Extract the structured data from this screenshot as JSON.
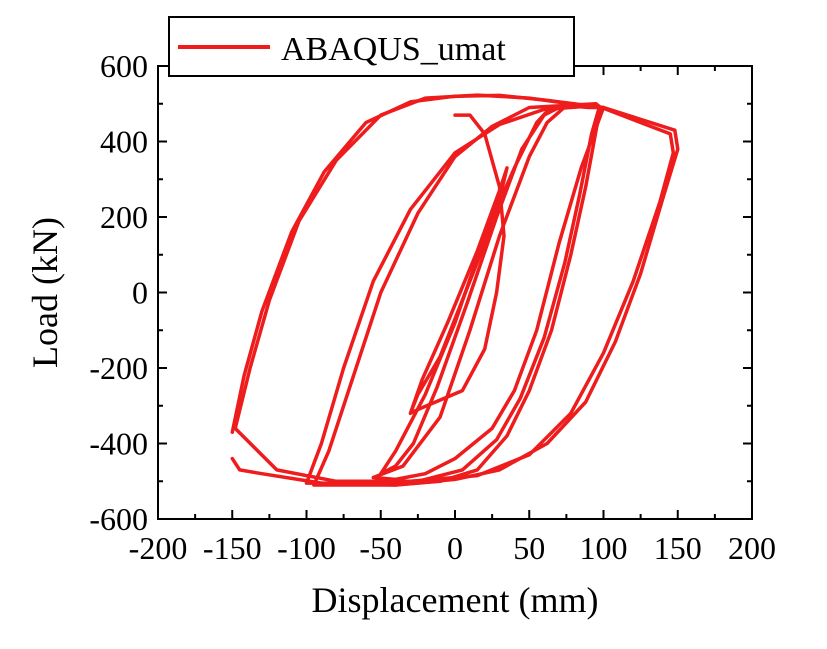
{
  "chart_data": {
    "type": "line",
    "xlabel": "Displacement (mm)",
    "ylabel": "Load (kN)",
    "xlim": [
      -200,
      200
    ],
    "ylim": [
      -600,
      600
    ],
    "xticks": [
      -200,
      -150,
      -100,
      -50,
      0,
      50,
      100,
      150,
      200
    ],
    "yticks": [
      -600,
      -400,
      -200,
      0,
      200,
      400,
      600
    ],
    "grid": false,
    "legend_position": "top-left",
    "series_color": "#ee1c1c",
    "series": [
      {
        "name": "ABAQUS_umat",
        "loops": [
          [
            [
              0,
              470
            ],
            [
              10,
              470
            ],
            [
              20,
              420
            ],
            [
              30,
              280
            ],
            [
              33,
              150
            ],
            [
              28,
              0
            ],
            [
              20,
              -150
            ],
            [
              5,
              -260
            ],
            [
              -25,
              -310
            ],
            [
              -30,
              -320
            ],
            [
              -25,
              -270
            ],
            [
              -10,
              -170
            ],
            [
              5,
              -20
            ],
            [
              20,
              130
            ],
            [
              32,
              280
            ],
            [
              35,
              330
            ],
            [
              30,
              270
            ],
            [
              15,
              110
            ],
            [
              -5,
              -80
            ],
            [
              -22,
              -230
            ],
            [
              -30,
              -320
            ]
          ],
          [
            [
              -50,
              -480
            ],
            [
              -40,
              -420
            ],
            [
              -20,
              -270
            ],
            [
              0,
              -80
            ],
            [
              20,
              150
            ],
            [
              40,
              330
            ],
            [
              55,
              450
            ],
            [
              62,
              480
            ],
            [
              70,
              490
            ],
            [
              60,
              470
            ],
            [
              45,
              380
            ],
            [
              28,
              200
            ],
            [
              8,
              -30
            ],
            [
              -12,
              -250
            ],
            [
              -28,
              -400
            ],
            [
              -40,
              -460
            ],
            [
              -50,
              -480
            ]
          ],
          [
            [
              -55,
              -490
            ],
            [
              -35,
              -460
            ],
            [
              -10,
              -330
            ],
            [
              10,
              -100
            ],
            [
              30,
              150
            ],
            [
              50,
              360
            ],
            [
              62,
              450
            ],
            [
              75,
              495
            ],
            [
              90,
              490
            ],
            [
              100,
              490
            ],
            [
              85,
              330
            ],
            [
              70,
              130
            ],
            [
              55,
              -100
            ],
            [
              40,
              -260
            ],
            [
              25,
              -360
            ],
            [
              0,
              -440
            ],
            [
              -20,
              -480
            ],
            [
              -40,
              -495
            ],
            [
              -55,
              -490
            ]
          ],
          [
            [
              -95,
              -510
            ],
            [
              -85,
              -420
            ],
            [
              -70,
              -240
            ],
            [
              -50,
              0
            ],
            [
              -25,
              210
            ],
            [
              0,
              360
            ],
            [
              25,
              440
            ],
            [
              50,
              490
            ],
            [
              95,
              500
            ],
            [
              98,
              490
            ],
            [
              95,
              430
            ],
            [
              88,
              280
            ],
            [
              78,
              100
            ],
            [
              65,
              -100
            ],
            [
              50,
              -260
            ],
            [
              35,
              -380
            ],
            [
              15,
              -470
            ],
            [
              -10,
              -500
            ],
            [
              -40,
              -510
            ],
            [
              -70,
              -510
            ],
            [
              -95,
              -510
            ]
          ],
          [
            [
              -100,
              -505
            ],
            [
              -90,
              -400
            ],
            [
              -75,
              -200
            ],
            [
              -55,
              30
            ],
            [
              -30,
              220
            ],
            [
              0,
              370
            ],
            [
              30,
              445
            ],
            [
              60,
              485
            ],
            [
              95,
              495
            ],
            [
              97,
              488
            ],
            [
              92,
              420
            ],
            [
              84,
              260
            ],
            [
              74,
              80
            ],
            [
              60,
              -120
            ],
            [
              44,
              -280
            ],
            [
              28,
              -390
            ],
            [
              5,
              -470
            ],
            [
              -25,
              -500
            ],
            [
              -60,
              -505
            ],
            [
              -100,
              -505
            ]
          ],
          [
            [
              -150,
              -370
            ],
            [
              -142,
              -220
            ],
            [
              -130,
              -50
            ],
            [
              -110,
              160
            ],
            [
              -88,
              320
            ],
            [
              -60,
              450
            ],
            [
              -30,
              505
            ],
            [
              0,
              520
            ],
            [
              30,
              522
            ],
            [
              60,
              510
            ],
            [
              100,
              490
            ],
            [
              148,
              430
            ],
            [
              150,
              380
            ],
            [
              140,
              250
            ],
            [
              125,
              50
            ],
            [
              108,
              -130
            ],
            [
              88,
              -290
            ],
            [
              62,
              -400
            ],
            [
              30,
              -470
            ],
            [
              0,
              -495
            ],
            [
              -40,
              -510
            ],
            [
              -90,
              -505
            ],
            [
              -130,
              -480
            ],
            [
              -145,
              -470
            ],
            [
              -150,
              -440
            ]
          ],
          [
            [
              -148,
              -360
            ],
            [
              -138,
              -200
            ],
            [
              -125,
              -20
            ],
            [
              -105,
              190
            ],
            [
              -80,
              350
            ],
            [
              -50,
              470
            ],
            [
              -20,
              515
            ],
            [
              15,
              523
            ],
            [
              50,
              515
            ],
            [
              100,
              488
            ],
            [
              145,
              420
            ],
            [
              147,
              370
            ],
            [
              138,
              240
            ],
            [
              120,
              30
            ],
            [
              100,
              -160
            ],
            [
              78,
              -320
            ],
            [
              50,
              -430
            ],
            [
              15,
              -485
            ],
            [
              -30,
              -500
            ],
            [
              -80,
              -500
            ],
            [
              -120,
              -470
            ],
            [
              -148,
              -360
            ]
          ]
        ]
      }
    ]
  }
}
